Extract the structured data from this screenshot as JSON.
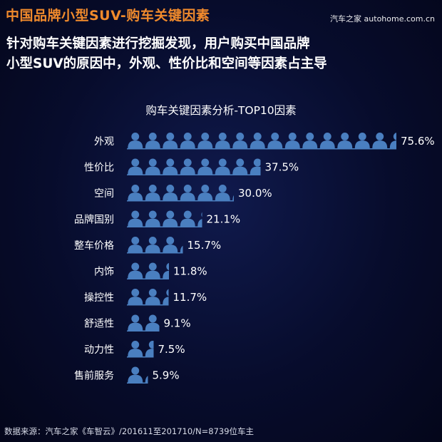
{
  "header": {
    "title": "中国品牌小型SUV-购车关键因素",
    "watermark": "汽车之家 autohome.com.cn",
    "subtitle_line1": "针对购车关键因素进行挖掘发现，用户购买中国品牌",
    "subtitle_line2": "小型SUV的原因中，外观、性价比和空间等因素占主导"
  },
  "chart_data": {
    "type": "bar",
    "title": "购车关键因素分析-TOP10因素",
    "categories": [
      "外观",
      "性价比",
      "空间",
      "品牌国别",
      "整车价格",
      "内饰",
      "操控性",
      "舒适性",
      "动力性",
      "售前服务"
    ],
    "values": [
      75.6,
      37.5,
      30.0,
      21.1,
      15.7,
      11.8,
      11.7,
      9.1,
      7.5,
      5.9
    ],
    "value_labels": [
      "75.6%",
      "37.5%",
      "30.0%",
      "21.1%",
      "15.7%",
      "11.8%",
      "11.7%",
      "9.1%",
      "7.5%",
      "5.9%"
    ],
    "mark": "person-icon",
    "bar_color": "#4a7fc0",
    "xlabel": "",
    "ylabel": ""
  },
  "footer": {
    "source": "数据来源：汽车之家《车智云》/201611至201710/N=8739位车主"
  }
}
